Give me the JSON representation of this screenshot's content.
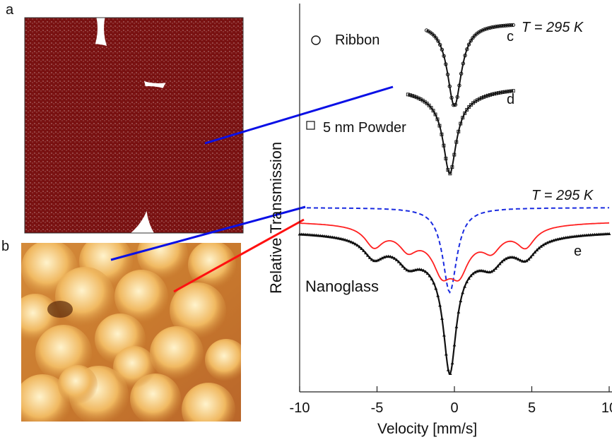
{
  "panels": {
    "a": "a",
    "b": "b"
  },
  "colors": {
    "particle": "#7a1212",
    "particle_light": "#a83a3a",
    "stm_dark": "#7a3c0c",
    "stm_mid": "#c9782c",
    "stm_light": "#fff0c8",
    "connector_blue": "#0a10e6",
    "connector_red": "#ff1010",
    "fit_blue": "#1a2be0",
    "fit_red": "#ff2020"
  },
  "chart_data": {
    "type": "line",
    "title": "",
    "xlabel": "Velocity [mm/s]",
    "ylabel": "Relative Transmission",
    "xlim": [
      -10,
      10
    ],
    "xticks": [
      -10,
      -5,
      0,
      5,
      10
    ],
    "xtick_labels": [
      "-10",
      "-5",
      "0",
      "5",
      "10"
    ],
    "annotations": {
      "temp_top": "T = 295 K",
      "temp_mid": "T = 295 K",
      "ribbon_legend": "Ribbon",
      "powder_legend": "5 nm Powder",
      "nanoglass_label": "Nanoglass",
      "curve_c": "c",
      "curve_d": "d",
      "curve_e": "e"
    },
    "series": [
      {
        "name": "Ribbon (c)",
        "marker": "circle",
        "baseline": 1.0,
        "depth": 0.22,
        "center": 0.0,
        "width": 0.9
      },
      {
        "name": "5 nm Powder (d)",
        "marker": "square",
        "baseline": 1.0,
        "depth": 0.25,
        "center": -0.3,
        "width": 0.8
      },
      {
        "name": "Nanoglass (e) data",
        "marker": "triangle",
        "baseline": 1.0,
        "center": -0.3
      },
      {
        "name": "Nanoglass fit (dashed)",
        "style": "dashed",
        "color": "#1a2be0"
      },
      {
        "name": "Nanoglass fit (red)",
        "style": "solid",
        "color": "#ff2020"
      }
    ]
  }
}
